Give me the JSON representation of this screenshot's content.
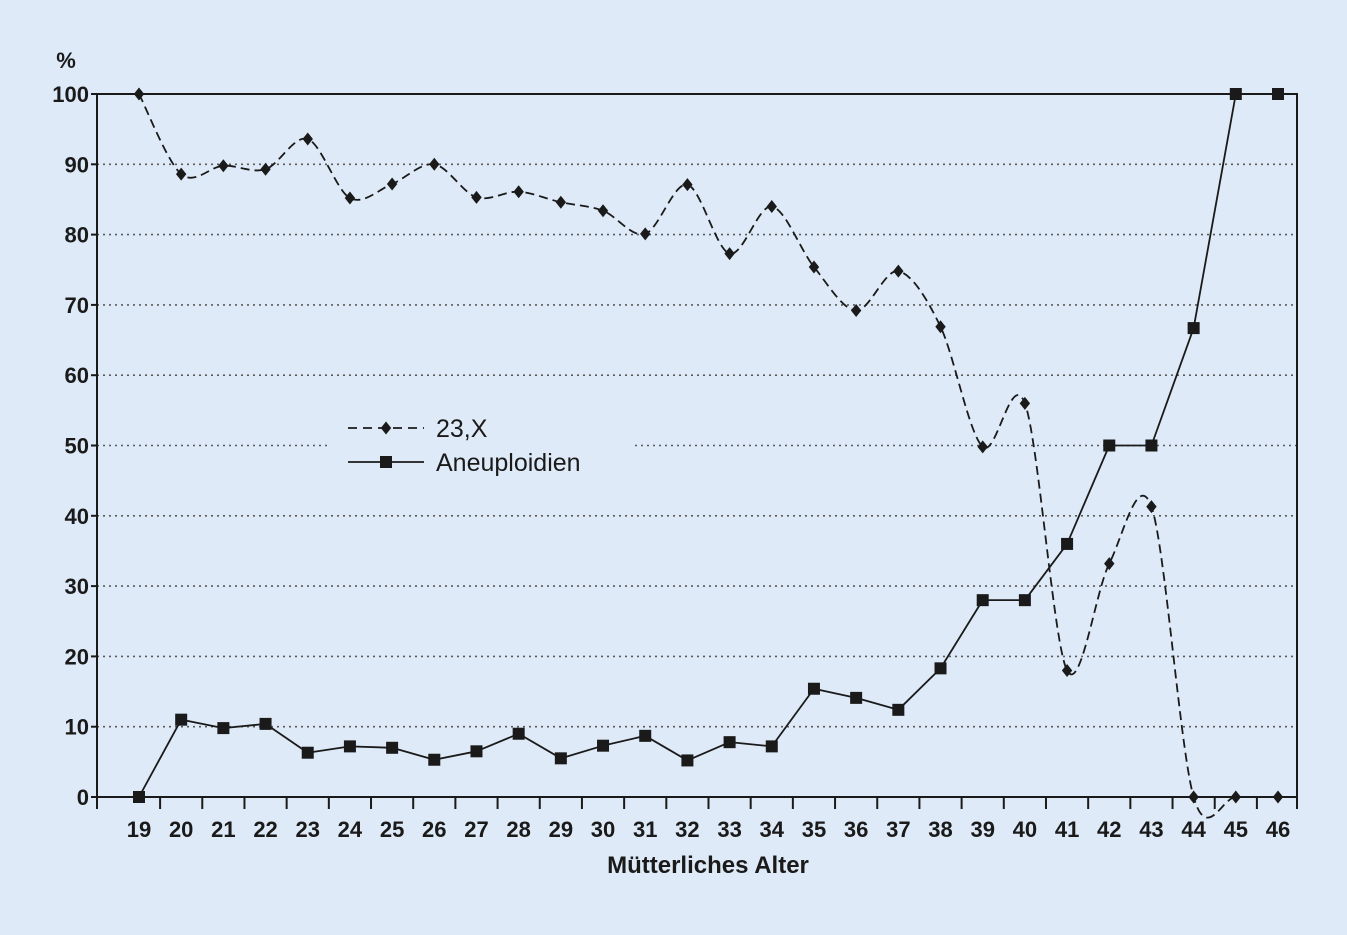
{
  "chart_data": {
    "type": "line",
    "title": "",
    "xlabel": "Mütterliches Alter",
    "ylabel": "%",
    "x": [
      19,
      20,
      21,
      22,
      23,
      24,
      25,
      26,
      27,
      28,
      29,
      30,
      31,
      32,
      33,
      34,
      35,
      36,
      37,
      38,
      39,
      40,
      41,
      42,
      43,
      44,
      45,
      46
    ],
    "xlim": [
      19,
      46
    ],
    "ylim": [
      0,
      100
    ],
    "yticks": [
      0,
      10,
      20,
      30,
      40,
      50,
      60,
      70,
      80,
      90,
      100
    ],
    "grid": true,
    "legend_position": "center-left",
    "series": [
      {
        "name": "23,X",
        "line_style": "dashed",
        "marker": "diamond",
        "color": "#1a1a1a",
        "values": [
          100,
          88.6,
          89.8,
          89.3,
          93.6,
          85.2,
          87.2,
          90,
          85.3,
          86.1,
          84.6,
          83.4,
          80.1,
          87.1,
          77.3,
          84,
          75.4,
          69.2,
          74.8,
          66.9,
          49.8,
          56,
          18,
          33.2,
          41.3,
          0,
          0,
          0
        ]
      },
      {
        "name": "Aneuploidien",
        "line_style": "solid",
        "marker": "square",
        "color": "#1a1a1a",
        "values": [
          0,
          11,
          9.8,
          10.4,
          6.3,
          7.2,
          7,
          5.3,
          6.5,
          9,
          5.5,
          7.3,
          8.7,
          5.2,
          7.8,
          7.2,
          15.4,
          14.1,
          12.4,
          18.3,
          28,
          28,
          36,
          50,
          50,
          66.7,
          100,
          100
        ]
      }
    ]
  },
  "colors": {
    "background": "#deeaf7",
    "ink": "#1a1a1a",
    "grid": "#5a5a5a"
  }
}
